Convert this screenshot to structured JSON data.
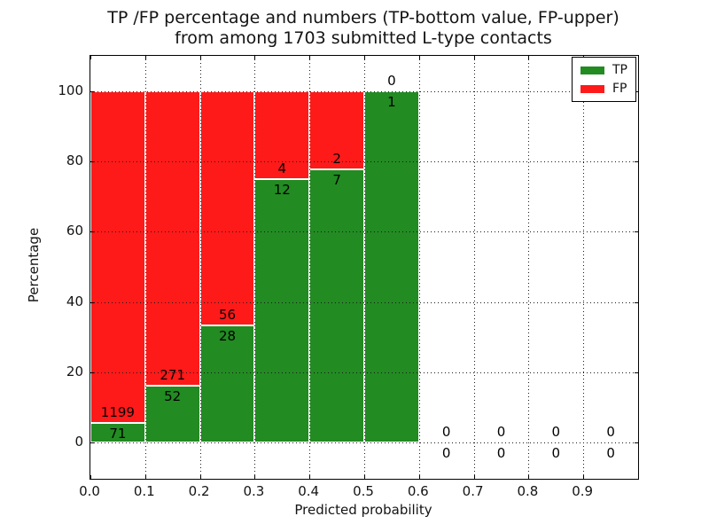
{
  "title": {
    "line1": "TP /FP percentage and numbers (TP-bottom value, FP-upper)",
    "line2": "from among 1703 submitted L-type contacts"
  },
  "axes": {
    "xlabel": "Predicted probability",
    "ylabel": "Percentage"
  },
  "legend": {
    "items": [
      {
        "label": "TP",
        "color": "#228B22"
      },
      {
        "label": "FP",
        "color": "#FF1A1A"
      }
    ]
  },
  "chart_data": {
    "type": "bar",
    "stacked": true,
    "units": "percent",
    "title": "TP /FP percentage and numbers (TP-bottom value, FP-upper) from among 1703 submitted L-type contacts",
    "total_submitted_contacts": 1703,
    "xlabel": "Predicted probability",
    "ylabel": "Percentage",
    "xlim": [
      0.0,
      1.0
    ],
    "ylim": [
      -10.3,
      110.0
    ],
    "grid": "dotted",
    "legend_position": "upper right",
    "colors": {
      "tp": "#228B22",
      "fp": "#FF1A1A",
      "edge": "#ffffff"
    },
    "xticks": [
      {
        "v": 0.0,
        "label": "0.0"
      },
      {
        "v": 0.1,
        "label": "0.1"
      },
      {
        "v": 0.2,
        "label": "0.2"
      },
      {
        "v": 0.3,
        "label": "0.3"
      },
      {
        "v": 0.4,
        "label": "0.4"
      },
      {
        "v": 0.5,
        "label": "0.5"
      },
      {
        "v": 0.6,
        "label": "0.6"
      },
      {
        "v": 0.7,
        "label": "0.7"
      },
      {
        "v": 0.8,
        "label": "0.8"
      },
      {
        "v": 0.9,
        "label": "0.9"
      }
    ],
    "yticks": [
      {
        "v": 0,
        "label": "0"
      },
      {
        "v": 20,
        "label": "20"
      },
      {
        "v": 40,
        "label": "40"
      },
      {
        "v": 60,
        "label": "60"
      },
      {
        "v": 80,
        "label": "80"
      },
      {
        "v": 100,
        "label": "100"
      }
    ],
    "series": [
      {
        "name": "TP",
        "role": "bottom"
      },
      {
        "name": "FP",
        "role": "top"
      }
    ],
    "bins": [
      {
        "x0": 0.0,
        "x1": 0.1,
        "tp_count": 71,
        "fp_count": 1199,
        "tp_pct": 5.59,
        "fp_pct": 94.41
      },
      {
        "x0": 0.1,
        "x1": 0.2,
        "tp_count": 52,
        "fp_count": 271,
        "tp_pct": 16.1,
        "fp_pct": 83.9
      },
      {
        "x0": 0.2,
        "x1": 0.3,
        "tp_count": 28,
        "fp_count": 56,
        "tp_pct": 33.33,
        "fp_pct": 66.67
      },
      {
        "x0": 0.3,
        "x1": 0.4,
        "tp_count": 12,
        "fp_count": 4,
        "tp_pct": 75.0,
        "fp_pct": 25.0
      },
      {
        "x0": 0.4,
        "x1": 0.5,
        "tp_count": 7,
        "fp_count": 2,
        "tp_pct": 77.78,
        "fp_pct": 22.22
      },
      {
        "x0": 0.5,
        "x1": 0.6,
        "tp_count": 1,
        "fp_count": 0,
        "tp_pct": 100.0,
        "fp_pct": 0.0
      },
      {
        "x0": 0.6,
        "x1": 0.7,
        "tp_count": 0,
        "fp_count": 0,
        "tp_pct": 0.0,
        "fp_pct": 0.0
      },
      {
        "x0": 0.7,
        "x1": 0.8,
        "tp_count": 0,
        "fp_count": 0,
        "tp_pct": 0.0,
        "fp_pct": 0.0
      },
      {
        "x0": 0.8,
        "x1": 0.9,
        "tp_count": 0,
        "fp_count": 0,
        "tp_pct": 0.0,
        "fp_pct": 0.0
      },
      {
        "x0": 0.9,
        "x1": 1.0,
        "tp_count": 0,
        "fp_count": 0,
        "tp_pct": 0.0,
        "fp_pct": 0.0
      }
    ]
  }
}
